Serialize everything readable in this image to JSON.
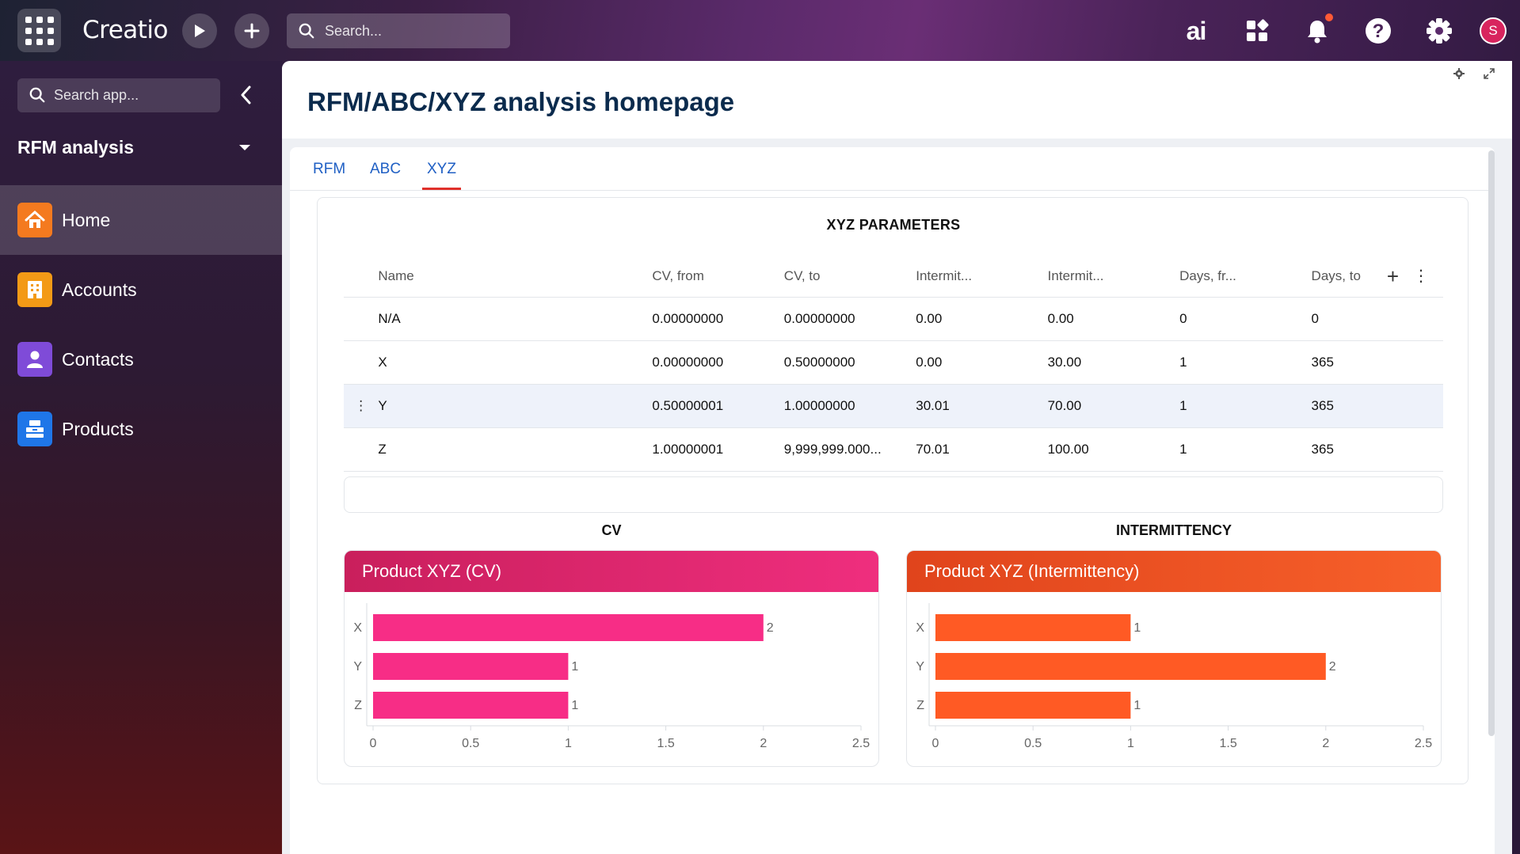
{
  "topbar": {
    "logo": "Creatio",
    "search_placeholder": "Search...",
    "ai_label": "ai",
    "avatar_initial": "S"
  },
  "sidebar": {
    "search_placeholder": "Search app...",
    "app_title": "RFM analysis",
    "items": [
      {
        "label": "Home",
        "icon": "house-icon",
        "color": "#f47a1f",
        "active": true
      },
      {
        "label": "Accounts",
        "icon": "building-icon",
        "color": "#f39a16",
        "active": false
      },
      {
        "label": "Contacts",
        "icon": "person-icon",
        "color": "#7f4bd8",
        "active": false
      },
      {
        "label": "Products",
        "icon": "products-icon",
        "color": "#1f76e8",
        "active": false
      }
    ]
  },
  "page": {
    "title": "RFM/ABC/XYZ analysis homepage",
    "tabs": [
      "RFM",
      "ABC",
      "XYZ"
    ],
    "active_tab": "XYZ"
  },
  "parameters": {
    "title": "XYZ PARAMETERS",
    "columns": [
      "Name",
      "CV, from",
      "CV, to",
      "Intermit...",
      "Intermit...",
      "Days, fr...",
      "Days, to"
    ],
    "rows": [
      [
        "N/A",
        "0.00000000",
        "0.00000000",
        "0.00",
        "0.00",
        "0",
        "0"
      ],
      [
        "X",
        "0.00000000",
        "0.50000000",
        "0.00",
        "30.00",
        "1",
        "365"
      ],
      [
        "Y",
        "0.50000001",
        "1.00000000",
        "30.01",
        "70.00",
        "1",
        "365"
      ],
      [
        "Z",
        "1.00000001",
        "9,999,999.000...",
        "70.01",
        "100.00",
        "1",
        "365"
      ]
    ],
    "highlighted_row": 2
  },
  "charts": {
    "cv_heading": "CV",
    "intermittency_heading": "INTERMITTENCY"
  },
  "chart_data": [
    {
      "type": "bar",
      "orientation": "horizontal",
      "title": "Product XYZ (CV)",
      "categories": [
        "X",
        "Y",
        "Z"
      ],
      "values": [
        2,
        1,
        1
      ],
      "xlim": [
        0,
        2.5
      ],
      "ticks": [
        "0",
        "0.5",
        "1",
        "1.5",
        "2",
        "2.5"
      ],
      "color": "#f72d86"
    },
    {
      "type": "bar",
      "orientation": "horizontal",
      "title": "Product XYZ (Intermittency)",
      "categories": [
        "X",
        "Y",
        "Z"
      ],
      "values": [
        1,
        2,
        1
      ],
      "xlim": [
        0,
        2.5
      ],
      "ticks": [
        "0",
        "0.5",
        "1",
        "1.5",
        "2",
        "2.5"
      ],
      "color": "#ff5a24"
    }
  ]
}
